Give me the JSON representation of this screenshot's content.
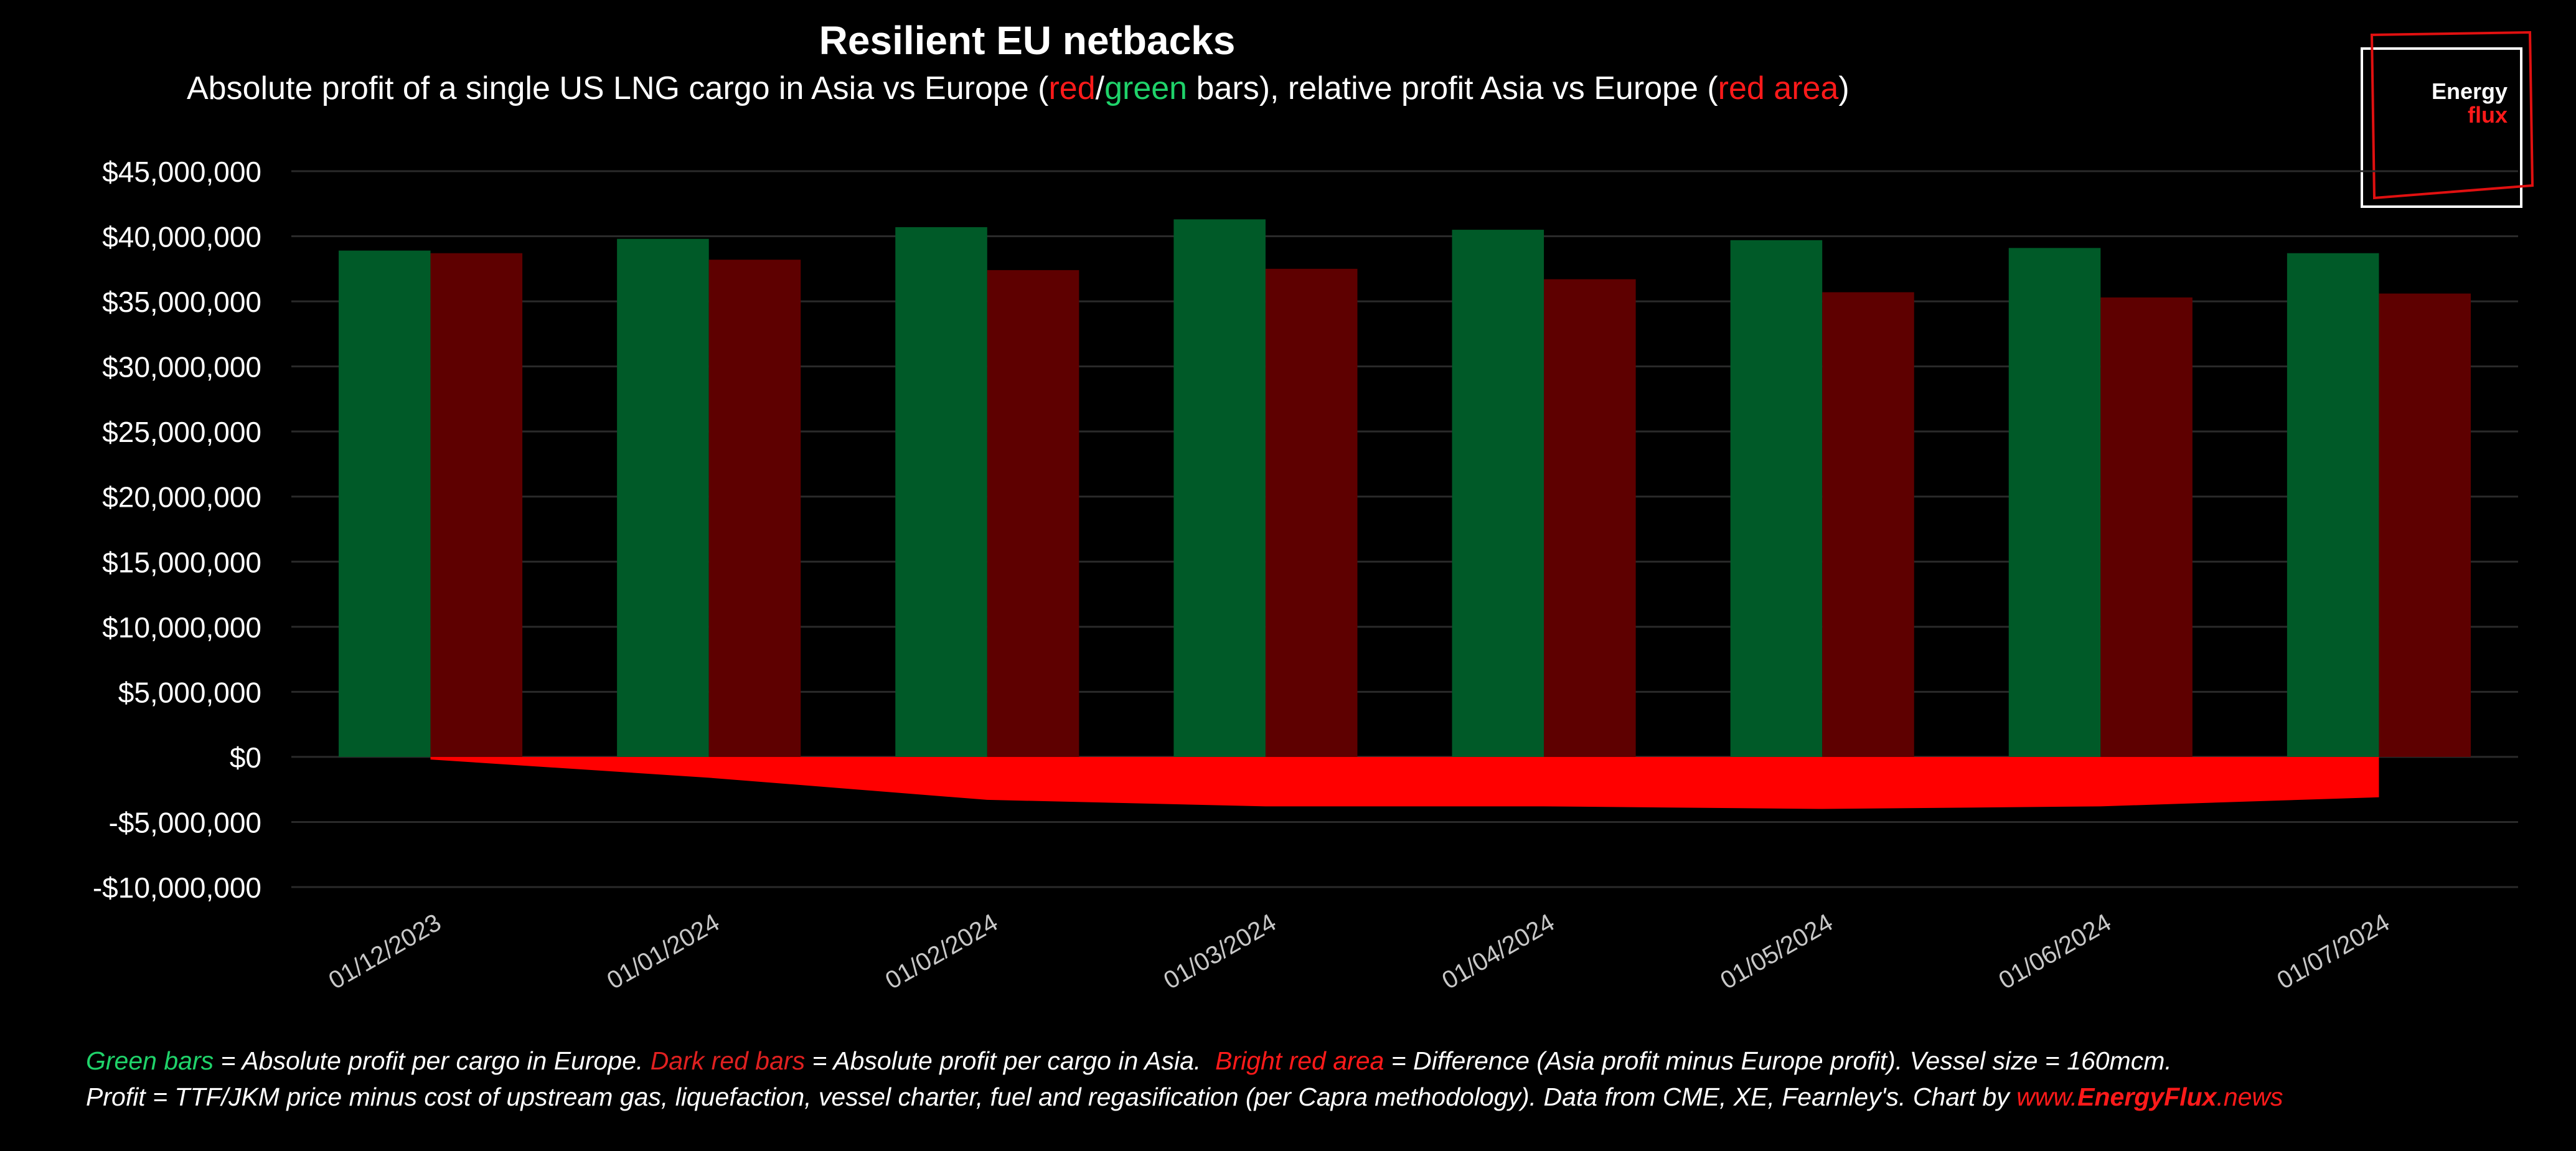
{
  "title": "Resilient EU netbacks",
  "subtitle": {
    "part1": "Absolute profit of a single US LNG cargo in Asia vs Europe (",
    "red": "red",
    "slash": "/",
    "green": "green",
    "part2": " bars), relative profit Asia vs Europe (",
    "red_area": "red area",
    "part3": ")"
  },
  "logo": {
    "line1": "Energy",
    "line2": "flux"
  },
  "footnote": {
    "l1_green": "Green bars",
    "l1_a": " = Absolute profit per cargo in Europe. ",
    "l1_dark": "Dark red bars",
    "l1_b": " = Absolute profit per cargo in Asia.  ",
    "l1_bright": "Bright red area",
    "l1_c": " = Difference (Asia profit minus Europe profit). Vessel size = 160mcm.",
    "l2_a": "Profit = TTF/JKM price minus cost of upstream gas, liquefaction, vessel charter, fuel and regasification (per Capra methodology). Data from CME, XE, Fearnley's. Chart by ",
    "l2_url_prefix": "www.",
    "l2_url_bold": "EnergyFlux",
    "l2_url_suffix": ".news"
  },
  "chart_data": {
    "type": "bar",
    "categories": [
      "01/12/2023",
      "01/01/2024",
      "01/02/2024",
      "01/03/2024",
      "01/04/2024",
      "01/05/2024",
      "01/06/2024",
      "01/07/2024"
    ],
    "series": [
      {
        "values": [
          38900000,
          39800000,
          40700000,
          41300000,
          40500000,
          39700000,
          39100000,
          38700000
        ],
        "color": "#005a28"
      },
      {
        "values": [
          38700000,
          38200000,
          37400000,
          37500000,
          36700000,
          35700000,
          35300000,
          35600000
        ],
        "color": "#5e0000"
      },
      {
        "type": "area",
        "values": [
          -200000,
          -1600000,
          -3300000,
          -3800000,
          -3800000,
          -4000000,
          -3800000,
          -3100000
        ],
        "color": "#ff0000"
      }
    ],
    "ylim": [
      -10000000,
      45000000
    ],
    "yticks": [
      45000000,
      40000000,
      35000000,
      30000000,
      25000000,
      20000000,
      15000000,
      10000000,
      5000000,
      0,
      -5000000,
      -10000000
    ],
    "ytick_labels": [
      "$45,000,000",
      "$40,000,000",
      "$35,000,000",
      "$30,000,000",
      "$25,000,000",
      "$20,000,000",
      "$15,000,000",
      "$10,000,000",
      "$5,000,000",
      "$0",
      "-$5,000,000",
      "-$10,000,000"
    ],
    "grid": true,
    "colors": {
      "grid": "#2a2a2a",
      "axis_text": "#ffffff",
      "category_text": "#c8c8c8"
    }
  }
}
